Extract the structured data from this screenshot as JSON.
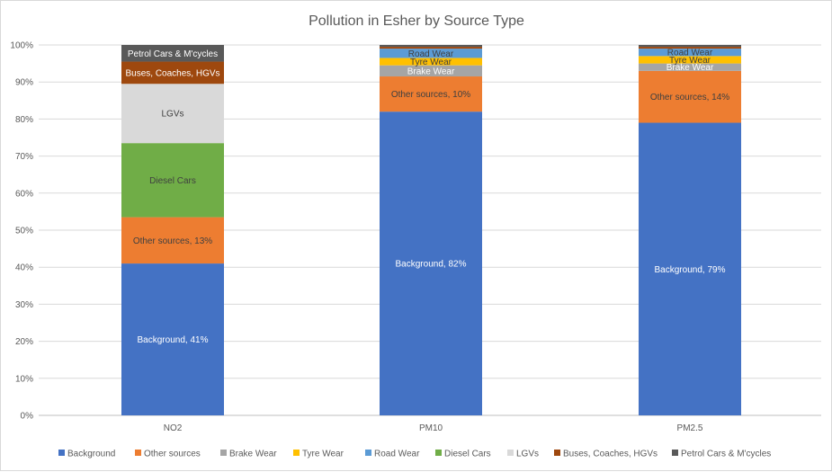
{
  "chart_data": {
    "type": "bar",
    "stacked": true,
    "title": "Pollution in Esher by Source Type",
    "xlabel": "",
    "ylabel": "",
    "ylim": [
      0,
      100
    ],
    "y_ticks": [
      "0%",
      "10%",
      "20%",
      "30%",
      "40%",
      "50%",
      "60%",
      "70%",
      "80%",
      "90%",
      "100%"
    ],
    "grid": true,
    "legend_position": "bottom",
    "categories": [
      "NO2",
      "PM10",
      "PM2.5"
    ],
    "series": [
      {
        "name": "Background",
        "color": "#4472c4",
        "values": [
          41,
          82,
          79
        ],
        "labels": [
          "Background, 41%",
          "Background, 82%",
          "Background, 79%"
        ],
        "label_color": "#ffffff"
      },
      {
        "name": "Other sources",
        "color": "#ed7d31",
        "values": [
          12.5,
          9.5,
          14
        ],
        "labels": [
          "Other sources, 13%",
          "Other sources, 10%",
          "Other sources, 14%"
        ],
        "label_color": "#404040"
      },
      {
        "name": "Brake Wear",
        "color": "#a5a5a5",
        "values": [
          0,
          3,
          2
        ],
        "labels": [
          "",
          "Brake Wear",
          "Brake Wear"
        ],
        "label_color": "#ffffff"
      },
      {
        "name": "Tyre Wear",
        "color": "#ffc000",
        "values": [
          0,
          2,
          2
        ],
        "labels": [
          "",
          "Tyre Wear",
          "Tyre Wear"
        ],
        "label_color": "#404040"
      },
      {
        "name": "Road Wear",
        "color": "#5b9bd5",
        "values": [
          0,
          2.5,
          2
        ],
        "labels": [
          "",
          "Road Wear",
          "Road Wear"
        ],
        "label_color": "#404040"
      },
      {
        "name": "Diesel Cars",
        "color": "#70ad47",
        "values": [
          20,
          0,
          0
        ],
        "labels": [
          "Diesel Cars",
          "",
          ""
        ],
        "label_color": "#404040"
      },
      {
        "name": "LGVs",
        "color": "#d9d9d9",
        "values": [
          16,
          0,
          0
        ],
        "labels": [
          "LGVs",
          "",
          ""
        ],
        "label_color": "#404040"
      },
      {
        "name": "Buses, Coaches, HGVs",
        "color": "#9e480e",
        "values": [
          6,
          0.5,
          0.5
        ],
        "labels": [
          "Buses, Coaches, HGVs",
          "",
          ""
        ],
        "label_color": "#ffffff"
      },
      {
        "name": "Petrol Cars & M'cycles",
        "color": "#595959",
        "values": [
          4.5,
          0.5,
          0.5
        ],
        "labels": [
          "Petrol Cars & M'cycles",
          "",
          ""
        ],
        "label_color": "#ffffff"
      }
    ]
  }
}
